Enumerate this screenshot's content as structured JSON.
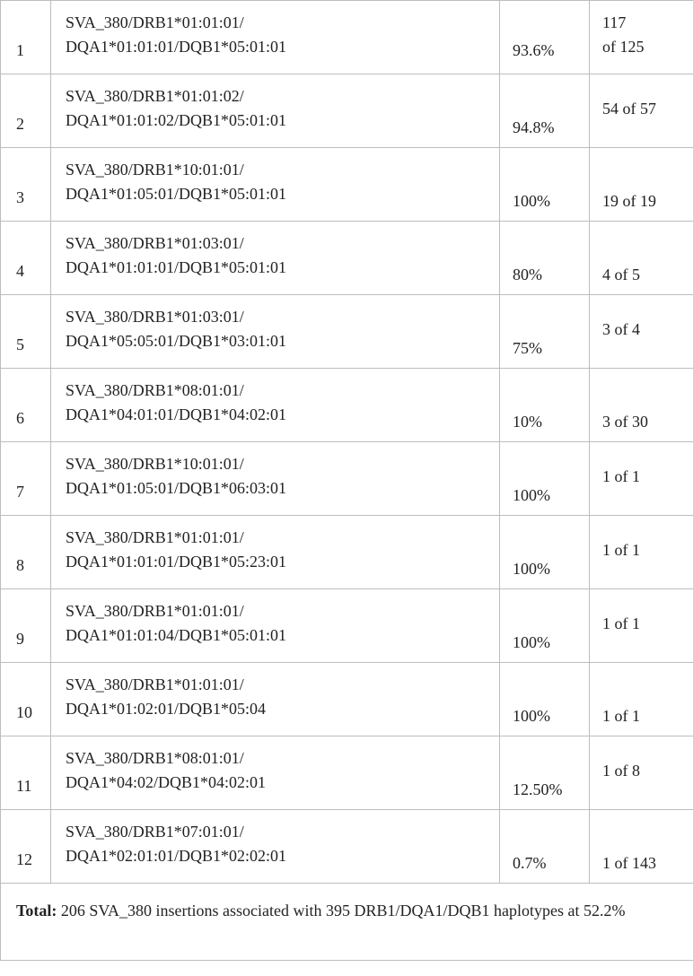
{
  "rows": [
    {
      "n": "1",
      "hap1": "SVA_380/DRB1*01:01:01/",
      "hap2": "DQA1*01:01:01/DQB1*05:01:01",
      "pct": "93.6%",
      "cnt1": "117",
      "cnt2": "of 125"
    },
    {
      "n": "2",
      "hap1": "SVA_380/DRB1*01:01:02/",
      "hap2": "DQA1*01:01:02/DQB1*05:01:01",
      "pct": "94.8%",
      "cnt": "54 of 57"
    },
    {
      "n": "3",
      "hap1": "SVA_380/DRB1*10:01:01/",
      "hap2": "DQA1*01:05:01/DQB1*05:01:01",
      "pct": "100%",
      "cnt": "19 of 19"
    },
    {
      "n": "4",
      "hap1": "SVA_380/DRB1*01:03:01/",
      "hap2": "DQA1*01:01:01/DQB1*05:01:01",
      "pct": "80%",
      "cnt": "4 of 5"
    },
    {
      "n": "5",
      "hap1": "SVA_380/DRB1*01:03:01/",
      "hap2": "DQA1*05:05:01/DQB1*03:01:01",
      "pct": "75%",
      "cnt": "3 of 4"
    },
    {
      "n": "6",
      "hap1": "SVA_380/DRB1*08:01:01/",
      "hap2": "DQA1*04:01:01/DQB1*04:02:01",
      "pct": "10%",
      "cnt": "3 of 30"
    },
    {
      "n": "7",
      "hap1": "SVA_380/DRB1*10:01:01/",
      "hap2": "DQA1*01:05:01/DQB1*06:03:01",
      "pct": "100%",
      "cnt": "1 of 1"
    },
    {
      "n": "8",
      "hap1": "SVA_380/DRB1*01:01:01/",
      "hap2": "DQA1*01:01:01/DQB1*05:23:01",
      "pct": "100%",
      "cnt": "1 of 1"
    },
    {
      "n": "9",
      "hap1": "SVA_380/DRB1*01:01:01/",
      "hap2": "DQA1*01:01:04/DQB1*05:01:01",
      "pct": "100%",
      "cnt": "1 of 1"
    },
    {
      "n": "10",
      "hap1": "SVA_380/DRB1*01:01:01/",
      "hap2": "DQA1*01:02:01/DQB1*05:04",
      "pct": "100%",
      "cnt": "1 of 1"
    },
    {
      "n": "11",
      "hap1": "SVA_380/DRB1*08:01:01/",
      "hap2": "DQA1*04:02/DQB1*04:02:01",
      "pct": "12.50%",
      "cnt": "1 of 8"
    },
    {
      "n": "12",
      "hap1": "SVA_380/DRB1*07:01:01/",
      "hap2": "DQA1*02:01:01/DQB1*02:02:01",
      "pct": "0.7%",
      "cnt": "1 of 143"
    }
  ],
  "total": {
    "label": "Total:",
    "text": " 206 SVA_380 insertions associated with 395 DRB1/DQA1/DQB1 haplotypes at 52.2%"
  }
}
